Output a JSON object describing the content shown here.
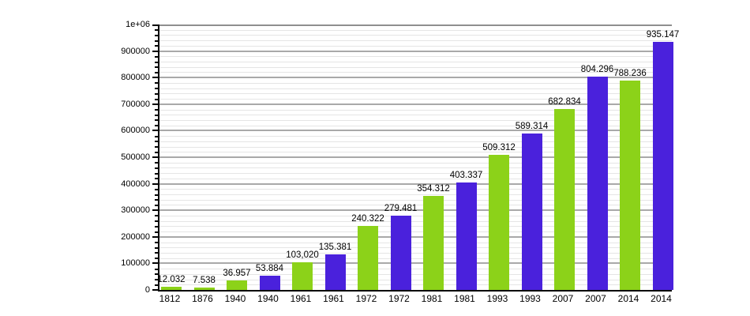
{
  "page": {
    "background": "#ffffff",
    "title": ""
  },
  "chart_data": {
    "type": "bar",
    "title": "",
    "xlabel": "",
    "ylabel": "",
    "ylim": [
      0,
      1000000
    ],
    "legend": "none",
    "grid": "horizontal, major every 100000 (gray), minor every 20000 (light gray)",
    "categories": [
      "1812",
      "1876",
      "1940",
      "1940",
      "1961",
      "1961",
      "1972",
      "1972",
      "1981",
      "1981",
      "1993",
      "1993",
      "2007",
      "2007",
      "2014",
      "2014"
    ],
    "values": [
      12032,
      7538,
      36957,
      53884,
      103020,
      135381,
      240322,
      279481,
      354312,
      403337,
      509312,
      589314,
      682834,
      804296,
      788236,
      935147
    ],
    "value_labels": [
      "12.032",
      "7.538",
      "36.957",
      "53.884",
      "103,020",
      "135.381",
      "240.322",
      "279.481",
      "354.312",
      "403.337",
      "509.312",
      "589.314",
      "682.834",
      "804.296",
      "788.236",
      "935.147"
    ],
    "bar_color_keys": [
      "green",
      "green",
      "green",
      "blue",
      "green",
      "blue",
      "green",
      "blue",
      "green",
      "blue",
      "green",
      "blue",
      "green",
      "blue",
      "green",
      "blue"
    ],
    "palette": {
      "green": "#8cd219",
      "blue": "#4a21dc"
    },
    "y_axis": {
      "min": 0,
      "max": 1000000,
      "major_step": 100000,
      "minor_step": 20000,
      "tick_labels": [
        "0",
        "100000",
        "200000",
        "300000",
        "400000",
        "500000",
        "600000",
        "700000",
        "800000",
        "900000",
        "1e+06"
      ]
    },
    "grid_colors": {
      "major": "#a9a9a9",
      "minor": "#e5e5e5",
      "top_border": "#8f8f8f",
      "axis": "#000000"
    }
  }
}
